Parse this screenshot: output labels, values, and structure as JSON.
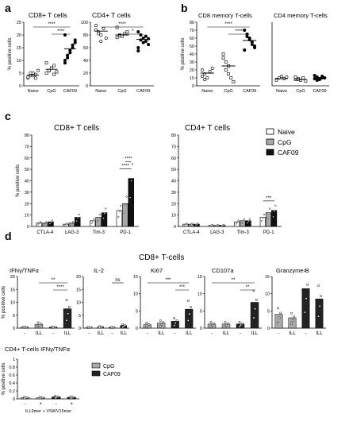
{
  "panel_labels": {
    "a": "a",
    "b": "b",
    "c": "c",
    "d": "d"
  },
  "groups3": [
    "Naive",
    "CpG",
    "CAF09"
  ],
  "markers": [
    "CTLA-4",
    "LAG-3",
    "Tim-3",
    "PD-1"
  ],
  "colors": {
    "naive": "#ffffff",
    "cpg": "#a9a9a9",
    "caf09": "#111111",
    "stroke": "#000000"
  },
  "sig": {
    "s4": "****",
    "s3": "***",
    "s2": "**",
    "s1": "*",
    "ns": "ns"
  },
  "ylabel": "% positive cells",
  "d_title": "CD8+ T-cells",
  "d_legend": [
    {
      "name": "CpG",
      "color": "#a9a9a9"
    },
    {
      "name": "CAF09",
      "color": "#222222"
    }
  ],
  "d_x": {
    "minus": "-",
    "ill": "ILL",
    "plus": "+"
  },
  "chart_data": [
    {
      "id": "a1",
      "type": "scatter",
      "title": "CD8+ T cells",
      "ylabel": "% positive cells",
      "ylim": [
        0,
        25
      ],
      "yticks": [
        0,
        5,
        10,
        15,
        20,
        25
      ],
      "categories": [
        "Naive",
        "CpG",
        "CAF09"
      ],
      "series": [
        {
          "values": [
            3,
            4,
            5,
            4.5,
            6,
            3.5,
            5,
            4,
            3
          ]
        },
        {
          "values": [
            5,
            6,
            7,
            8,
            5.5,
            9,
            6,
            7,
            4.5
          ]
        },
        {
          "values": [
            10,
            12,
            14,
            16,
            18,
            20,
            11,
            13,
            15,
            17,
            9
          ]
        }
      ],
      "medians": [
        4.2,
        6.5,
        14.5
      ],
      "significance": [
        {
          "from": 0,
          "to": 2,
          "label": "****"
        },
        {
          "from": 1,
          "to": 2,
          "label": "****"
        }
      ]
    },
    {
      "id": "a2",
      "type": "scatter",
      "title": "CD4+ T cells",
      "ylabel": "",
      "ylim": [
        0,
        100
      ],
      "yticks": [
        0,
        20,
        40,
        60,
        80,
        100
      ],
      "categories": [
        "Naive",
        "CpG",
        "CAF09"
      ],
      "series": [
        {
          "values": [
            95,
            85,
            80,
            90,
            75,
            88,
            82,
            70
          ]
        },
        {
          "values": [
            92,
            80,
            78,
            82,
            85,
            76,
            79
          ]
        },
        {
          "values": [
            85,
            80,
            75,
            70,
            65,
            60,
            72,
            68,
            78,
            74,
            55
          ]
        }
      ],
      "medians": [
        86,
        80,
        73
      ],
      "significance": [
        {
          "from": 0,
          "to": 2,
          "label": "****"
        },
        {
          "from": 1,
          "to": 2,
          "label": "*"
        }
      ]
    },
    {
      "id": "b1",
      "type": "scatter",
      "title": "CD8 memory T-cells",
      "ylabel": "% positive cells",
      "ylim": [
        0,
        80
      ],
      "yticks": [
        0,
        10,
        20,
        30,
        40,
        50,
        60,
        70,
        80
      ],
      "categories": [
        "Naive",
        "CpG",
        "CAF09"
      ],
      "series": [
        {
          "values": [
            20,
            15,
            10,
            18,
            22,
            12,
            8
          ]
        },
        {
          "values": [
            40,
            30,
            25,
            10,
            5,
            35,
            20,
            15
          ]
        },
        {
          "values": [
            70,
            65,
            60,
            55,
            50,
            45,
            62,
            58,
            52,
            48
          ]
        }
      ],
      "medians": [
        16,
        25,
        57
      ],
      "significance": [
        {
          "from": 0,
          "to": 2,
          "label": "****"
        },
        {
          "from": 1,
          "to": 2,
          "label": "****"
        }
      ]
    },
    {
      "id": "b2",
      "type": "scatter",
      "title": "CD4 memory T-cells",
      "ylabel": "",
      "ylim": [
        0,
        80
      ],
      "yticks": [],
      "categories": [
        "Naive",
        "CpG",
        "CAF09"
      ],
      "series": [
        {
          "values": [
            8,
            10,
            12,
            9,
            11,
            7
          ]
        },
        {
          "values": [
            8,
            9,
            7,
            10,
            6,
            11,
            8
          ]
        },
        {
          "values": [
            9,
            11,
            8,
            12,
            10,
            13,
            7,
            9,
            10
          ]
        }
      ],
      "medians": [
        9,
        8,
        10
      ],
      "significance": []
    },
    {
      "id": "c1",
      "type": "bar",
      "title": "CD8+ T cells",
      "ylabel": "% positive cells",
      "ylim": [
        0,
        80
      ],
      "yticks": [
        0,
        10,
        20,
        30,
        40,
        50,
        60,
        70,
        80
      ],
      "categories": [
        "CTLA-4",
        "LAG-3",
        "Tim-3",
        "PD-1"
      ],
      "series": [
        {
          "name": "Naive",
          "values": [
            3,
            2,
            5,
            14
          ]
        },
        {
          "name": "CpG",
          "values": [
            3,
            3,
            8,
            20
          ]
        },
        {
          "name": "CAF09",
          "values": [
            4,
            8,
            12,
            42
          ]
        }
      ],
      "significance": [
        {
          "category": 3,
          "from": 0,
          "to": 2,
          "label": "****"
        },
        {
          "category": 3,
          "from": 1,
          "to": 2,
          "label": "****"
        }
      ]
    },
    {
      "id": "c2",
      "type": "bar",
      "title": "CD4+ T cells",
      "ylabel": "",
      "ylim": [
        0,
        80
      ],
      "yticks": [
        0,
        10,
        20,
        30,
        40,
        50,
        60,
        70,
        80
      ],
      "categories": [
        "CTLA-4",
        "LAG-3",
        "Tim-3",
        "PD-1"
      ],
      "series": [
        {
          "name": "Naive",
          "values": [
            2,
            1,
            4,
            8
          ]
        },
        {
          "name": "CpG",
          "values": [
            2,
            1,
            5,
            12
          ]
        },
        {
          "name": "CAF09",
          "values": [
            2,
            1,
            5,
            14
          ]
        }
      ],
      "significance": [
        {
          "category": 3,
          "from": 0,
          "to": 2,
          "label": "***"
        }
      ]
    },
    {
      "id": "d1",
      "type": "bar",
      "title": "IFNγ/TNFα",
      "ylabel": "% positive cells",
      "ylim": [
        0,
        20
      ],
      "yticks": [
        0,
        5,
        10,
        15,
        20
      ],
      "categories": [
        "-",
        "ILL",
        "-",
        "ILL"
      ],
      "colors": [
        "#a9a9a9",
        "#a9a9a9",
        "#222222",
        "#222222"
      ],
      "values": [
        0.4,
        1.5,
        0.4,
        7.5
      ],
      "significance": [
        {
          "from": 1,
          "to": 3,
          "label": "**"
        },
        {
          "from": 2,
          "to": 3,
          "label": "****"
        }
      ]
    },
    {
      "id": "d2",
      "type": "bar",
      "title": "IL-2",
      "ylabel": "",
      "ylim": [
        0,
        20
      ],
      "yticks": [
        0,
        5,
        10,
        15,
        20
      ],
      "categories": [
        "-",
        "ILL",
        "-",
        "ILL"
      ],
      "colors": [
        "#a9a9a9",
        "#a9a9a9",
        "#222222",
        "#222222"
      ],
      "values": [
        0.3,
        0.5,
        0.3,
        1.0
      ],
      "significance": [
        {
          "from": 2,
          "to": 3,
          "label": "ns"
        }
      ]
    },
    {
      "id": "d3",
      "type": "bar",
      "title": "Ki67",
      "ylabel": "",
      "ylim": [
        0,
        15
      ],
      "yticks": [
        0,
        5,
        10,
        15
      ],
      "categories": [
        "-",
        "ILL",
        "-",
        "ILL"
      ],
      "colors": [
        "#a9a9a9",
        "#a9a9a9",
        "#222222",
        "#222222"
      ],
      "values": [
        1.0,
        1.5,
        2.0,
        5.5
      ],
      "significance": [
        {
          "from": 0,
          "to": 3,
          "label": "***"
        },
        {
          "from": 2,
          "to": 3,
          "label": "***"
        }
      ]
    },
    {
      "id": "d4",
      "type": "bar",
      "title": "CD107a",
      "ylabel": "",
      "ylim": [
        0,
        15
      ],
      "yticks": [
        0,
        5,
        10,
        15
      ],
      "categories": [
        "-",
        "ILL",
        "-",
        "ILL"
      ],
      "colors": [
        "#a9a9a9",
        "#a9a9a9",
        "#222222",
        "#222222"
      ],
      "values": [
        1.2,
        1.2,
        1.2,
        7.5
      ],
      "significance": [
        {
          "from": 0,
          "to": 3,
          "label": "**"
        },
        {
          "from": 2,
          "to": 3,
          "label": "**"
        }
      ]
    },
    {
      "id": "d5",
      "type": "bar",
      "title": "Granzyme B",
      "ylabel": "",
      "ylim": [
        0,
        15
      ],
      "yticks": [
        0,
        5,
        10,
        15
      ],
      "categories": [
        "-",
        "ILL",
        "-",
        "ILL"
      ],
      "colors": [
        "#a9a9a9",
        "#a9a9a9",
        "#222222",
        "#222222"
      ],
      "values": [
        4,
        3,
        11.5,
        8.5
      ],
      "significance": []
    },
    {
      "id": "e1",
      "type": "bar",
      "title": "CD4+ T-cells IFNγ/TNFα",
      "ylabel": "% positive cells",
      "ylim": [
        0,
        1.0
      ],
      "yticks": [
        0,
        0.2,
        0.4,
        0.6,
        0.8,
        1.0
      ],
      "categories": [
        "-",
        "+",
        "-",
        "+"
      ],
      "colors": [
        "#a9a9a9",
        "#a9a9a9",
        "#222222",
        "#222222"
      ],
      "values": [
        0.03,
        0.03,
        0.05,
        0.04
      ],
      "xlabel": "ILL9mer + VSWV15mer",
      "significance": []
    }
  ]
}
